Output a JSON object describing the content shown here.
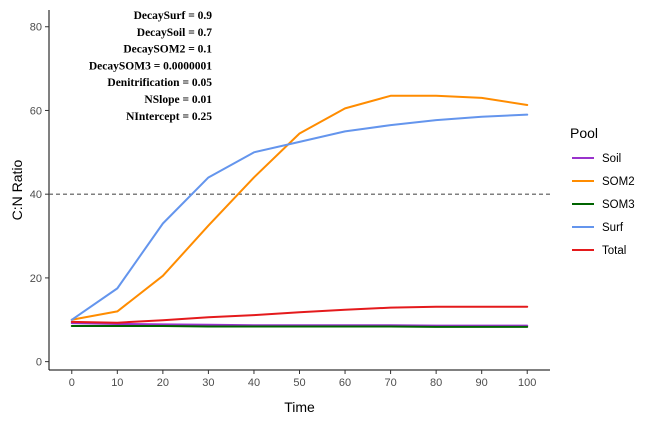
{
  "chart_data": {
    "type": "line",
    "title": "",
    "xlabel": "Time",
    "ylabel": "C:N Ratio",
    "xlim": [
      -5,
      105
    ],
    "ylim": [
      -2,
      84
    ],
    "x_ticks": [
      0,
      10,
      20,
      30,
      40,
      50,
      60,
      70,
      80,
      90,
      100
    ],
    "y_ticks": [
      0,
      20,
      40,
      60,
      80
    ],
    "reference_line": {
      "y": 40,
      "style": "dashed",
      "color": "#555555"
    },
    "grid": false,
    "legend": {
      "title": "Pool",
      "placement": "right",
      "entries": [
        "Soil",
        "SOM2",
        "SOM3",
        "Surf",
        "Total"
      ]
    },
    "x": [
      0,
      10,
      20,
      30,
      40,
      50,
      60,
      70,
      80,
      90,
      100
    ],
    "series": [
      {
        "name": "Soil",
        "color": "#9932CC",
        "values": [
          9.2,
          9.0,
          8.9,
          8.8,
          8.7,
          8.7,
          8.7,
          8.7,
          8.6,
          8.6,
          8.6
        ]
      },
      {
        "name": "SOM2",
        "color": "#FF8C00",
        "values": [
          10,
          12,
          20.5,
          32.5,
          44,
          54.5,
          60.5,
          63.5,
          63.5,
          63,
          61.3
        ]
      },
      {
        "name": "SOM3",
        "color": "#006400",
        "values": [
          8.5,
          8.5,
          8.5,
          8.4,
          8.4,
          8.4,
          8.4,
          8.4,
          8.3,
          8.3,
          8.3
        ]
      },
      {
        "name": "Surf",
        "color": "#6495ED",
        "values": [
          10,
          17.5,
          33,
          44,
          50,
          52.5,
          55,
          56.5,
          57.7,
          58.5,
          59
        ]
      },
      {
        "name": "Total",
        "color": "#E41A1C",
        "values": [
          9.5,
          9.3,
          9.9,
          10.6,
          11.1,
          11.8,
          12.4,
          12.9,
          13.1,
          13.1,
          13.1
        ]
      }
    ],
    "annotations": [
      "DecaySurf = 0.9",
      "DecaySoil = 0.7",
      "DecaySOM2 = 0.1",
      "DecaySOM3 = 0.0000001",
      "Denitrification = 0.05",
      "NSlope = 0.01",
      "NIntercept = 0.25"
    ]
  }
}
